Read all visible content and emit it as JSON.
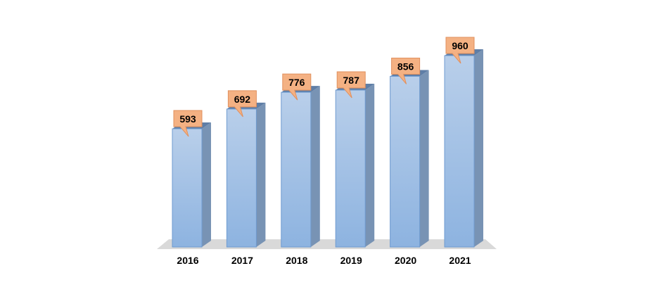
{
  "chart_data": {
    "type": "bar",
    "categories": [
      "2016",
      "2017",
      "2018",
      "2019",
      "2020",
      "2021"
    ],
    "values": [
      593,
      692,
      776,
      787,
      856,
      960
    ],
    "data_labels": [
      "593",
      "692",
      "776",
      "787",
      "856",
      "960"
    ],
    "title": "",
    "xlabel": "",
    "ylabel": "",
    "ylim": [
      0,
      960
    ],
    "grid": false,
    "legend": "none",
    "style": "3d-column"
  },
  "colors": {
    "bar_front_top": "#b9cfea",
    "bar_front_bottom": "#8db3e0",
    "bar_side": "#7893b4",
    "bar_top": "#5f7ea6",
    "bar_edge": "#6f9bd0",
    "callout_fill": "#f4b183",
    "callout_stroke": "#e0905e",
    "floor": "#d9d9d9"
  }
}
